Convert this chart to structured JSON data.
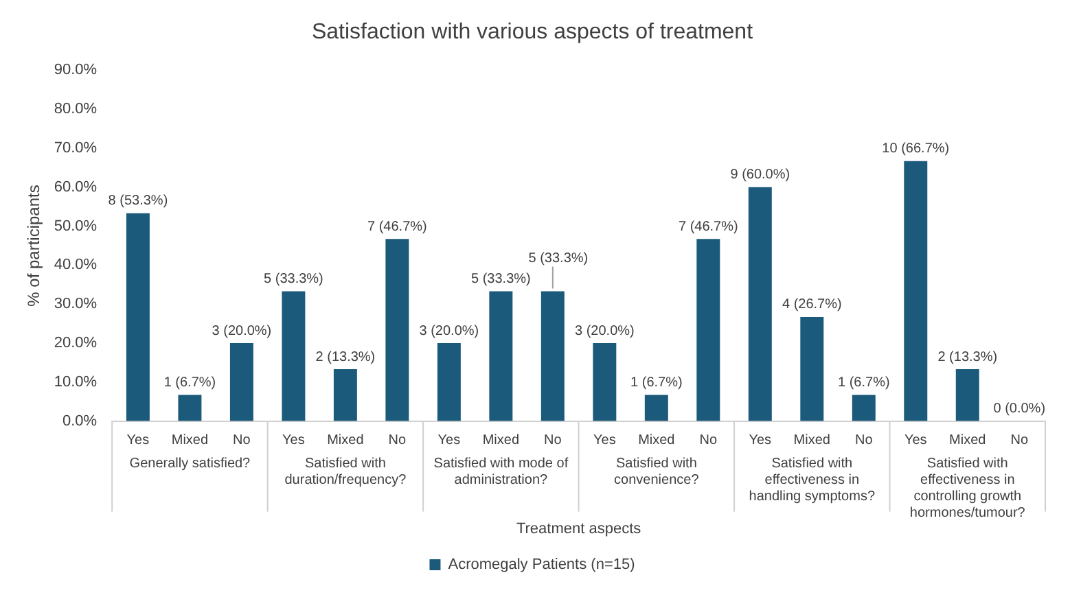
{
  "chart_data": {
    "type": "bar",
    "title": "Satisfaction with various aspects of treatment",
    "xlabel": "Treatment aspects",
    "ylabel": "% of participants",
    "categories": [
      "Yes",
      "Mixed",
      "No",
      "Yes",
      "Mixed",
      "No",
      "Yes",
      "Mixed",
      "No",
      "Yes",
      "Mixed",
      "No",
      "Yes",
      "Mixed",
      "No",
      "Yes",
      "Mixed",
      "No"
    ],
    "annotations": [
      "Generally satisfied?",
      "Satisfied with duration/frequency?",
      "Satisfied with mode of administration?",
      "Satisfied with convenience?",
      "Satisfied with effectiveness in handling symptoms?",
      "Satisfied with effectiveness in controlling growth hormones/tumour?"
    ],
    "series": [
      {
        "name": "Acromegaly Patients (n=15)",
        "color": "#1b5a7a",
        "values": [
          53.3,
          6.7,
          20.0,
          33.3,
          13.3,
          46.7,
          20.0,
          33.3,
          33.3,
          20.0,
          6.7,
          46.7,
          60.0,
          26.7,
          6.7,
          66.7,
          13.3,
          0.0
        ],
        "value_labels": [
          "8 (53.3%)",
          "1 (6.7%)",
          "3 (20.0%)",
          "5 (33.3%)",
          "2 (13.3%)",
          "7 (46.7%)",
          "3 (20.0%)",
          "5 (33.3%)",
          "5 (33.3%)",
          "3 (20.0%)",
          "1 (6.7%)",
          "7 (46.7%)",
          "9 (60.0%)",
          "4 (26.7%)",
          "1 (6.7%)",
          "10 (66.7%)",
          "2 (13.3%)",
          "0 (0.0%)"
        ]
      }
    ],
    "ylim": [
      0,
      90
    ],
    "yticks": [
      {
        "value": 0,
        "label": "0.0%"
      },
      {
        "value": 10,
        "label": "10.0%"
      },
      {
        "value": 20,
        "label": "20.0%"
      },
      {
        "value": 30,
        "label": "30.0%"
      },
      {
        "value": 40,
        "label": "40.0%"
      },
      {
        "value": 50,
        "label": "50.0%"
      },
      {
        "value": 60,
        "label": "60.0%"
      },
      {
        "value": 70,
        "label": "70.0%"
      },
      {
        "value": 80,
        "label": "80.0%"
      },
      {
        "value": 90,
        "label": "90.0%"
      }
    ],
    "grid": false,
    "legend": "bottom"
  }
}
